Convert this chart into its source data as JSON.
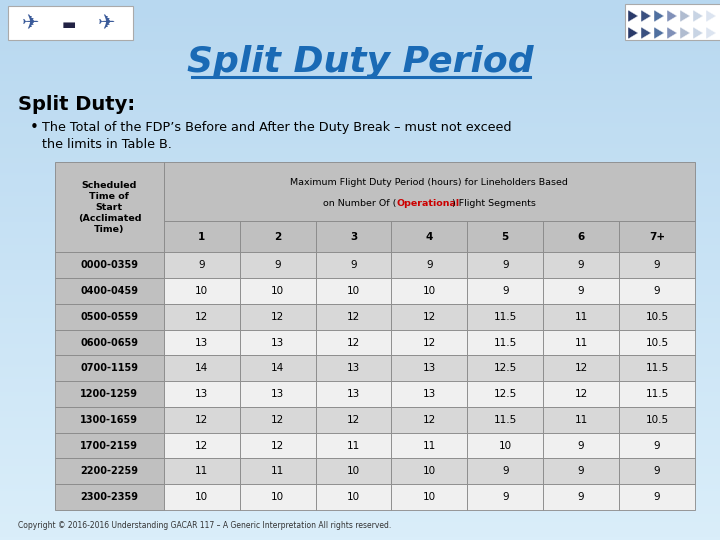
{
  "title": "Split Duty Period",
  "subtitle_heading": "Split Duty:",
  "bullet_line1": "The Total of the FDP’s Before and After the Duty Break – must not exceed",
  "bullet_line2": "the limits in Table B.",
  "header_label": "Scheduled\nTime of\nStart\n(Acclimated\nTime)",
  "header_span1": "Maximum Flight Duty Period (hours) for Lineholders Based",
  "header_span2a": "on Number Of (",
  "header_span2b": "Operational",
  "header_span2c": ") Flight Segments",
  "col_headers": [
    "1",
    "2",
    "3",
    "4",
    "5",
    "6",
    "7+"
  ],
  "row_labels": [
    "0000-0359",
    "0400-0459",
    "0500-0559",
    "0600-0659",
    "0700-1159",
    "1200-1259",
    "1300-1659",
    "1700-2159",
    "2200-2259",
    "2300-2359"
  ],
  "table_data": [
    [
      9,
      9,
      9,
      9,
      9,
      9,
      9
    ],
    [
      10,
      10,
      10,
      10,
      9,
      9,
      9
    ],
    [
      12,
      12,
      12,
      12,
      11.5,
      11,
      10.5
    ],
    [
      13,
      13,
      12,
      12,
      11.5,
      11,
      10.5
    ],
    [
      14,
      14,
      13,
      13,
      12.5,
      12,
      11.5
    ],
    [
      13,
      13,
      13,
      13,
      12.5,
      12,
      11.5
    ],
    [
      12,
      12,
      12,
      12,
      11.5,
      11,
      10.5
    ],
    [
      12,
      12,
      11,
      11,
      10,
      9,
      9
    ],
    [
      11,
      11,
      10,
      10,
      9,
      9,
      9
    ],
    [
      10,
      10,
      10,
      10,
      9,
      9,
      9
    ]
  ],
  "bg_top": "#b8d8f0",
  "bg_bottom": "#daeefa",
  "table_header_bg": "#c0c0c0",
  "table_even_bg": "#d8d8d8",
  "table_odd_bg": "#f0f0f0",
  "title_color": "#1a6ab5",
  "operational_color": "#cc0000",
  "copyright": "Copyright © 2016-2016 Understanding GACAR 117 – A Generic Interpretation All rights reserved."
}
